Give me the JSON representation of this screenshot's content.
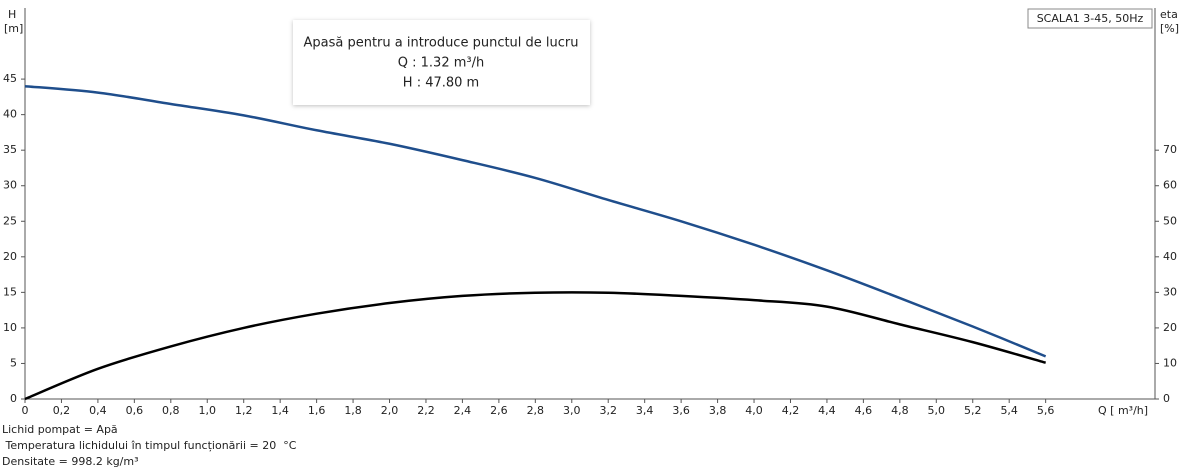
{
  "chart_data": {
    "type": "line",
    "title": "SCALA1 3-45, 50Hz",
    "y_label": "H",
    "y_unit": "[m]",
    "y2_label": "eta",
    "y2_unit": "[%]",
    "x_label": "Q [ m³/h]",
    "tooltip": [
      "Apasă pentru a introduce punctul de lucru",
      "Q : 1.32 m³/h",
      "H : 47.80 m"
    ],
    "notes": [
      "Lichid pompat = Apă",
      " Temperatura lichidului în timpul funcționării = 20  °C",
      "Densitate = 998.2  kg/m³"
    ],
    "x": [
      0,
      0.4,
      0.8,
      1.2,
      1.6,
      2.0,
      2.4,
      2.8,
      3.2,
      3.6,
      4.0,
      4.4,
      4.8,
      5.2,
      5.6
    ],
    "series": [
      {
        "color": "#1f4e8c",
        "values": [
          44,
          43.1,
          41.5,
          39.9,
          37.8,
          35.9,
          33.6,
          31.1,
          28.0,
          25.0,
          21.7,
          18.1,
          14.2,
          10.2,
          6.0
        ]
      },
      {
        "color": "#000000",
        "axis": "y2",
        "values": [
          0,
          8.5,
          14.8,
          20,
          24,
          27,
          29,
          29.9,
          29.9,
          29,
          27.8,
          26,
          21,
          16,
          10.2
        ]
      }
    ],
    "xlim": [
      0,
      6.2
    ],
    "ylim": [
      0,
      55
    ],
    "y2lim": [
      0,
      110
    ],
    "xticks": [
      0,
      {
        "value": 0.2,
        "label": "0,2"
      },
      {
        "value": 0.4,
        "label": "0,4"
      },
      {
        "value": 0.6,
        "label": "0,6"
      },
      {
        "value": 0.8,
        "label": "0,8"
      },
      {
        "value": 1.0,
        "label": "1,0"
      },
      {
        "value": 1.2,
        "label": "1,2"
      },
      {
        "value": 1.4,
        "label": "1,4"
      },
      {
        "value": 1.6,
        "label": "1,6"
      },
      {
        "value": 1.8,
        "label": "1,8"
      },
      {
        "value": 2.0,
        "label": "2,0"
      },
      {
        "value": 2.2,
        "label": "2,2"
      },
      {
        "value": 2.4,
        "label": "2,4"
      },
      {
        "value": 2.6,
        "label": "2,6"
      },
      {
        "value": 2.8,
        "label": "2,8"
      },
      {
        "value": 3.0,
        "label": "3,0"
      },
      {
        "value": 3.2,
        "label": "3,2"
      },
      {
        "value": 3.4,
        "label": "3,4"
      },
      {
        "value": 3.6,
        "label": "3,6"
      },
      {
        "value": 3.8,
        "label": "3,8"
      },
      {
        "value": 4.0,
        "label": "4,0"
      },
      {
        "value": 4.2,
        "label": "4,2"
      },
      {
        "value": 4.4,
        "label": "4,4"
      },
      {
        "value": 4.6,
        "label": "4,6"
      },
      {
        "value": 4.8,
        "label": "4,8"
      },
      {
        "value": 5.0,
        "label": "5,0"
      },
      {
        "value": 5.2,
        "label": "5,2"
      },
      {
        "value": 5.4,
        "label": "5,4"
      },
      {
        "value": 5.6,
        "label": "5,6"
      }
    ],
    "yticks": [
      0,
      5,
      10,
      15,
      20,
      25,
      30,
      35,
      40,
      45
    ],
    "y2ticks": [
      0,
      10,
      20,
      30,
      40,
      50,
      60,
      70
    ]
  }
}
